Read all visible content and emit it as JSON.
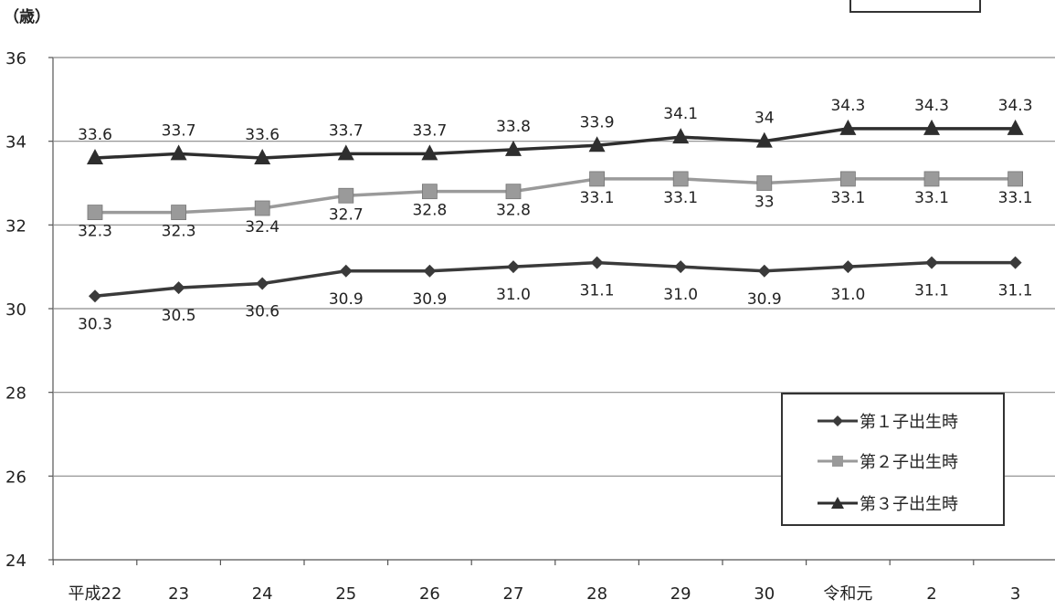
{
  "chart_data": {
    "type": "line",
    "ylabel": "（歳）",
    "ylim": [
      24,
      36
    ],
    "yticks": [
      "24",
      "26",
      "28",
      "30",
      "32",
      "34",
      "36"
    ],
    "categories": [
      "平成22",
      "23",
      "24",
      "25",
      "26",
      "27",
      "28",
      "29",
      "30",
      "令和元",
      "2",
      "3"
    ],
    "grid": true,
    "legend_position": "bottom-right",
    "series": [
      {
        "name": "第１子出生時",
        "marker": "diamond",
        "color": "#3a3a3a",
        "values": [
          30.3,
          30.5,
          30.6,
          30.9,
          30.9,
          31.0,
          31.1,
          31.0,
          30.9,
          31.0,
          31.1,
          31.1
        ],
        "labels": [
          "30.3",
          "30.5",
          "30.6",
          "30.9",
          "30.9",
          "31.0",
          "31.1",
          "31.0",
          "30.9",
          "31.0",
          "31.1",
          "31.1"
        ]
      },
      {
        "name": "第２子出生時",
        "marker": "square",
        "color": "#9a9a9a",
        "values": [
          32.3,
          32.3,
          32.4,
          32.7,
          32.8,
          32.8,
          33.1,
          33.1,
          33.0,
          33.1,
          33.1,
          33.1
        ],
        "labels": [
          "32.3",
          "32.3",
          "32.4",
          "32.7",
          "32.8",
          "32.8",
          "33.1",
          "33.1",
          "33",
          "33.1",
          "33.1",
          "33.1"
        ]
      },
      {
        "name": "第３子出生時",
        "marker": "triangle",
        "color": "#2e2e2e",
        "values": [
          33.6,
          33.7,
          33.6,
          33.7,
          33.7,
          33.8,
          33.9,
          34.1,
          34.0,
          34.3,
          34.3,
          34.3
        ],
        "labels": [
          "33.6",
          "33.7",
          "33.6",
          "33.7",
          "33.7",
          "33.8",
          "33.9",
          "34.1",
          "34",
          "34.3",
          "34.3",
          "34.3"
        ]
      }
    ]
  }
}
